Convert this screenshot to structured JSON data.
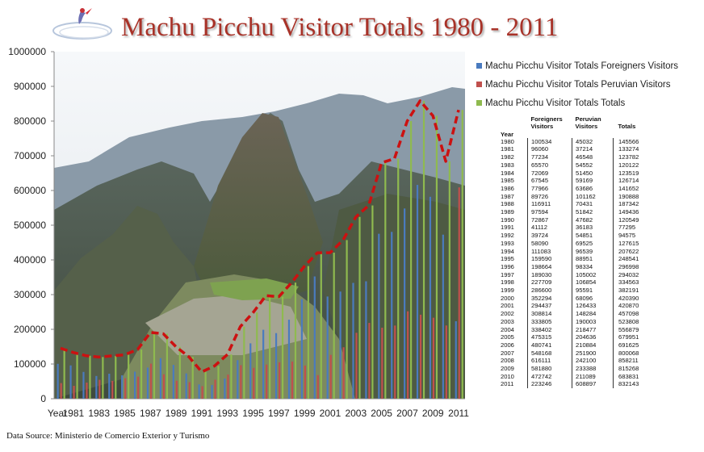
{
  "title": "Machu Picchu Visitor Totals 1980 - 2011",
  "source": "Data Source: Ministerio de Comercio Exterior y Turismo",
  "colors": {
    "foreigners": "#4a7bbf",
    "peruvian": "#c0504d",
    "totals": "#8fba4f",
    "trend": "#cc1111",
    "title": "#a83228"
  },
  "table": {
    "year_header": "Year",
    "foreigners_header": "Foreigners Visitors",
    "peruvian_header": "Peruvian Visitors",
    "totals_header": "Totals"
  },
  "chart_data": {
    "type": "bar",
    "title": "Machu Picchu Visitor Totals 1980 - 2011",
    "xlabel": "Year",
    "ylabel": "",
    "ylim": [
      0,
      1000000
    ],
    "yticks": [
      0,
      100000,
      200000,
      300000,
      400000,
      500000,
      600000,
      700000,
      800000,
      900000,
      1000000
    ],
    "xtick_labels": [
      "1981",
      "1983",
      "1985",
      "1987",
      "1989",
      "1991",
      "1993",
      "1995",
      "1997",
      "1999",
      "2001",
      "2003",
      "2005",
      "2007",
      "2009",
      "2011"
    ],
    "legend_position": "right",
    "grid": false,
    "categories": [
      "1980",
      "1981",
      "1982",
      "1983",
      "1984",
      "1985",
      "1986",
      "1987",
      "1988",
      "1989",
      "1990",
      "1991",
      "1992",
      "1993",
      "1994",
      "1995",
      "1996",
      "1997",
      "1998",
      "1999",
      "2000",
      "2001",
      "2002",
      "2003",
      "2004",
      "2005",
      "2006",
      "2007",
      "2008",
      "2009",
      "2010",
      "2011"
    ],
    "series": [
      {
        "name": "Machu Picchu Visitor Totals Foreigners Visitors",
        "values": [
          100534,
          96060,
          77234,
          65570,
          72069,
          67545,
          77966,
          89726,
          116911,
          97594,
          72867,
          41112,
          39724,
          58090,
          111083,
          159590,
          198664,
          189030,
          227709,
          286600,
          352294,
          294437,
          308814,
          333805,
          338402,
          475315,
          480741,
          548168,
          616111,
          581880,
          472742,
          223246
        ]
      },
      {
        "name": "Machu Picchu Visitor Totals Peruvian Visitors",
        "values": [
          45032,
          37214,
          46548,
          54552,
          51450,
          59169,
          63686,
          101162,
          70431,
          51842,
          47682,
          36183,
          54851,
          69525,
          96539,
          88951,
          98334,
          105002,
          106854,
          95591,
          68096,
          126433,
          148284,
          190003,
          218477,
          204636,
          210884,
          251900,
          242100,
          233388,
          211089,
          608897
        ]
      },
      {
        "name": "Machu Picchu Visitor Totals Totals",
        "values": [
          145566,
          133274,
          123782,
          120122,
          123519,
          126714,
          141652,
          190888,
          187342,
          149436,
          120549,
          77295,
          94575,
          127615,
          207622,
          248541,
          296998,
          294032,
          334563,
          382191,
          420390,
          420870,
          457098,
          523808,
          556879,
          679951,
          691625,
          800068,
          858211,
          815268,
          683831,
          832143
        ]
      }
    ]
  }
}
